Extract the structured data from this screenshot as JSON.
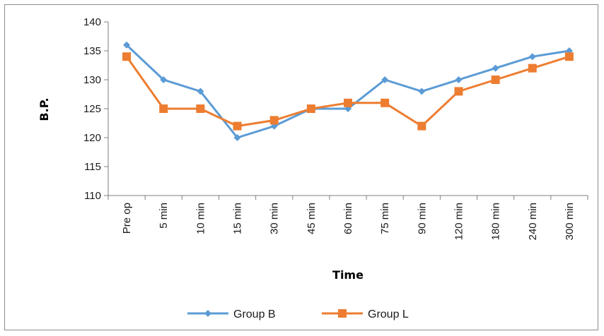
{
  "chart_data": {
    "type": "line",
    "title": "",
    "xlabel": "Time",
    "ylabel": "B.P.",
    "categories": [
      "Pre op",
      "5 min",
      "10 min",
      "15 min",
      "30 min",
      "45 min",
      "60 min",
      "75 min",
      "90 min",
      "120 min",
      "180 min",
      "240 min",
      "300 min"
    ],
    "ylim": [
      110,
      140
    ],
    "yticks": [
      110,
      115,
      120,
      125,
      130,
      135,
      140
    ],
    "grid": false,
    "legend_position": "bottom",
    "series": [
      {
        "name": "Group B",
        "color": "#5b9bd5",
        "marker": "diamond",
        "values": [
          136,
          130,
          128,
          120,
          122,
          125,
          125,
          130,
          128,
          130,
          132,
          134,
          135
        ]
      },
      {
        "name": "Group L",
        "color": "#ed7d31",
        "marker": "square",
        "values": [
          134,
          125,
          125,
          122,
          123,
          125,
          126,
          126,
          122,
          128,
          130,
          132,
          134
        ]
      }
    ]
  }
}
